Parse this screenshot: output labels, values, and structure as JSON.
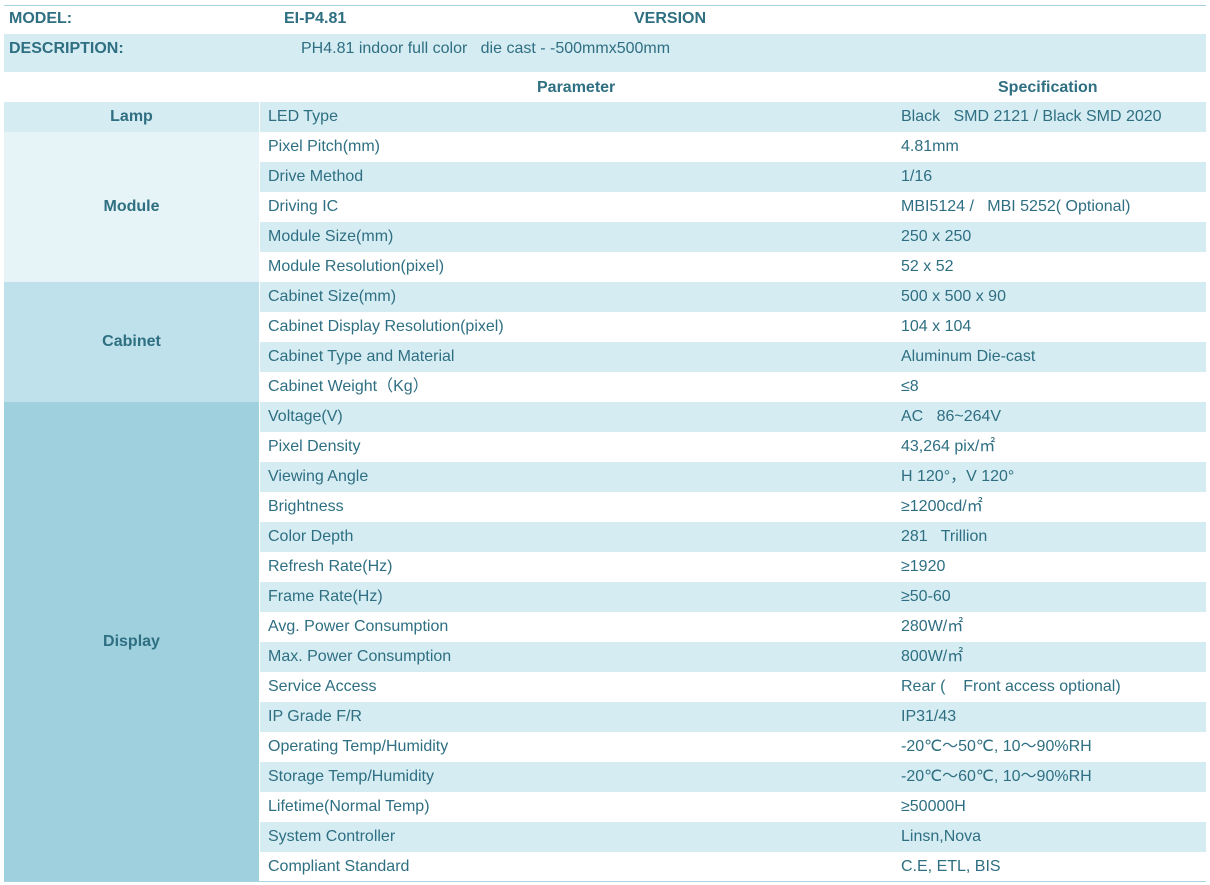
{
  "header": {
    "model_label": "MODEL:",
    "model_value": "EI-P4.81",
    "version_label": "VERSION",
    "description_label": "DESCRIPTION:",
    "description_value": "PH4.81 indoor full color   die cast - -500mmx500mm"
  },
  "columns": {
    "parameter": "Parameter",
    "specification": "Specification"
  },
  "groups": [
    {
      "name": "Lamp",
      "color": "#d6ecf3",
      "rows": [
        {
          "parameter": "LED Type",
          "specification": "Black   SMD 2121 / Black SMD 2020"
        }
      ]
    },
    {
      "name": "Module",
      "color": "#e6f3f7",
      "rows": [
        {
          "parameter": "Pixel Pitch(mm)",
          "specification": "4.81mm"
        },
        {
          "parameter": "Drive Method",
          "specification": "1/16"
        },
        {
          "parameter": "Driving IC",
          "specification": "MBI5124 /   MBI 5252( Optional)"
        },
        {
          "parameter": "Module Size(mm)",
          "specification": "250 x 250"
        },
        {
          "parameter": "Module Resolution(pixel)",
          "specification": "52 x 52"
        }
      ]
    },
    {
      "name": "Cabinet",
      "color": "#bfe1eb",
      "rows": [
        {
          "parameter": "Cabinet Size(mm)",
          "specification": "500 x 500 x 90"
        },
        {
          "parameter": "Cabinet Display Resolution(pixel)",
          "specification": "104 x 104"
        },
        {
          "parameter": "Cabinet Type and Material",
          "specification": "Aluminum Die-cast"
        },
        {
          "parameter": "Cabinet Weight（Kg）",
          "specification": "≤8"
        }
      ]
    },
    {
      "name": "Display",
      "color": "#9fd0de",
      "rows": [
        {
          "parameter": "Voltage(V)",
          "specification": "AC   86~264V"
        },
        {
          "parameter": "Pixel Density",
          "specification": "43,264 pix/㎡"
        },
        {
          "parameter": "Viewing Angle",
          "specification": "H 120°，V 120°"
        },
        {
          "parameter": "Brightness",
          "specification": "≥1200cd/㎡"
        },
        {
          "parameter": "Color Depth",
          "specification": "281   Trillion"
        },
        {
          "parameter": "Refresh Rate(Hz)",
          "specification": "≥1920"
        },
        {
          "parameter": "Frame Rate(Hz)",
          "specification": "≥50-60"
        },
        {
          "parameter": "Avg. Power Consumption",
          "specification": "280W/㎡"
        },
        {
          "parameter": "Max. Power Consumption",
          "specification": "800W/㎡"
        },
        {
          "parameter": "Service Access",
          "specification": "Rear (    Front access optional)"
        },
        {
          "parameter": "IP Grade F/R",
          "specification": "IP31/43"
        },
        {
          "parameter": "Operating Temp/Humidity",
          "specification": "-20℃～50℃, 10～90%RH"
        },
        {
          "parameter": "Storage Temp/Humidity",
          "specification": "-20℃～60℃, 10～90%RH"
        },
        {
          "parameter": "Lifetime(Normal Temp)",
          "specification": "≥50000H"
        },
        {
          "parameter": "System Controller",
          "specification": "Linsn,Nova"
        },
        {
          "parameter": "Compliant Standard",
          "specification": "C.E, ETL, BIS"
        }
      ]
    }
  ],
  "colors": {
    "text": "#2e6f82",
    "stripe": "#d6ecf3",
    "plain": "#ffffff"
  }
}
